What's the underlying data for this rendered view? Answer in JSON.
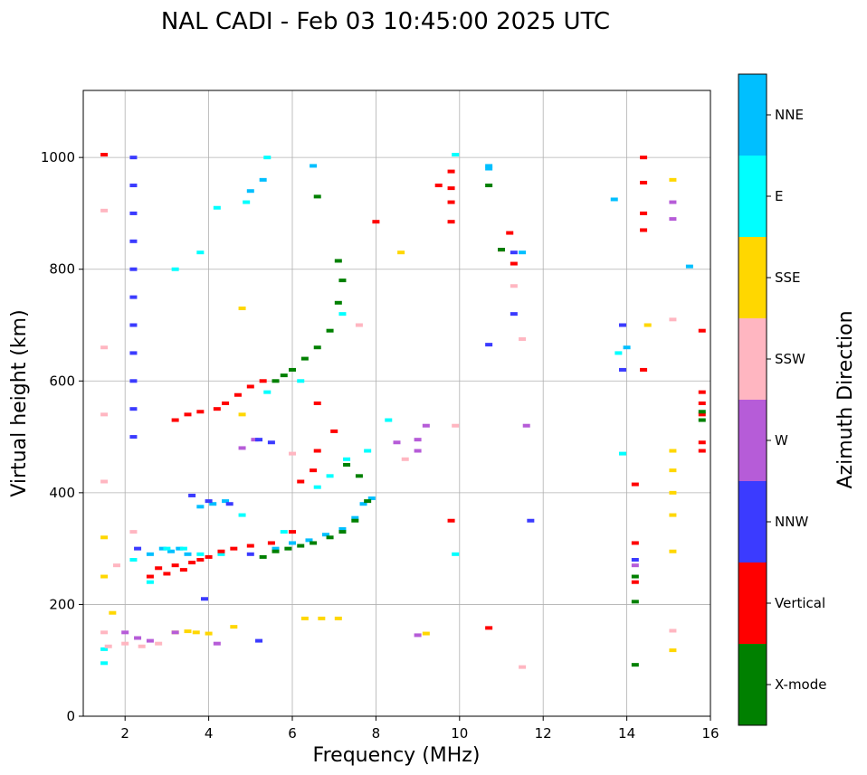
{
  "chart_data": {
    "type": "scatter",
    "title": "NAL CADI - Feb 03 10:45:00 2025 UTC",
    "xlabel": "Frequency (MHz)",
    "ylabel": "Virtual height (km)",
    "xlim": [
      1,
      16
    ],
    "ylim": [
      0,
      1120
    ],
    "xticks": [
      2,
      4,
      6,
      8,
      10,
      12,
      14,
      16
    ],
    "yticks": [
      0,
      200,
      400,
      600,
      800,
      1000
    ],
    "grid": true,
    "colorbar": {
      "label": "Azimuth Direction",
      "categories": [
        {
          "name": "X-mode",
          "color": "#008000"
        },
        {
          "name": "Vertical",
          "color": "#ff0000"
        },
        {
          "name": "NNW",
          "color": "#3b3bff"
        },
        {
          "name": "W",
          "color": "#b65cd8"
        },
        {
          "name": "SSW",
          "color": "#ffb6c1"
        },
        {
          "name": "SSE",
          "color": "#ffd700"
        },
        {
          "name": "E",
          "color": "#00ffff"
        },
        {
          "name": "NNE",
          "color": "#00bfff"
        }
      ]
    },
    "series": [
      {
        "name": "NNE",
        "points": [
          [
            2.6,
            290
          ],
          [
            2.9,
            300
          ],
          [
            3.1,
            295
          ],
          [
            3.3,
            300
          ],
          [
            3.5,
            290
          ],
          [
            3.8,
            375
          ],
          [
            4.1,
            380
          ],
          [
            4.4,
            385
          ],
          [
            5.6,
            300
          ],
          [
            6,
            310
          ],
          [
            6.4,
            315
          ],
          [
            6.8,
            325
          ],
          [
            7.2,
            335
          ],
          [
            7.5,
            355
          ],
          [
            7.7,
            380
          ],
          [
            7.9,
            390
          ],
          [
            5,
            940
          ],
          [
            5.3,
            960
          ],
          [
            6.5,
            985
          ],
          [
            10.7,
            985
          ],
          [
            10.7,
            980
          ],
          [
            11.5,
            830
          ],
          [
            13.7,
            925
          ],
          [
            14,
            660
          ],
          [
            15.5,
            805
          ]
        ]
      },
      {
        "name": "E",
        "points": [
          [
            1.5,
            95
          ],
          [
            1.5,
            120
          ],
          [
            2.2,
            280
          ],
          [
            2.6,
            240
          ],
          [
            3,
            300
          ],
          [
            3.4,
            300
          ],
          [
            3.8,
            290
          ],
          [
            4.3,
            290
          ],
          [
            4.8,
            360
          ],
          [
            5.4,
            580
          ],
          [
            5.8,
            330
          ],
          [
            6.2,
            600
          ],
          [
            6.6,
            410
          ],
          [
            6.9,
            430
          ],
          [
            7.3,
            460
          ],
          [
            7.8,
            475
          ],
          [
            8.3,
            530
          ],
          [
            3.2,
            800
          ],
          [
            3.8,
            830
          ],
          [
            4.2,
            910
          ],
          [
            4.9,
            920
          ],
          [
            5.4,
            1000
          ],
          [
            7.2,
            720
          ],
          [
            9.9,
            1005
          ],
          [
            9.9,
            290
          ],
          [
            13.9,
            470
          ],
          [
            13.8,
            650
          ]
        ]
      },
      {
        "name": "SSE",
        "points": [
          [
            1.5,
            250
          ],
          [
            1.5,
            320
          ],
          [
            1.7,
            185
          ],
          [
            3.2,
            150
          ],
          [
            3.5,
            152
          ],
          [
            3.7,
            150
          ],
          [
            4,
            148
          ],
          [
            4.8,
            540
          ],
          [
            4.8,
            730
          ],
          [
            4.6,
            160
          ],
          [
            6.3,
            175
          ],
          [
            6.7,
            175
          ],
          [
            7.1,
            175
          ],
          [
            8.6,
            830
          ],
          [
            14.5,
            700
          ],
          [
            15.1,
            960
          ],
          [
            15.1,
            475
          ],
          [
            15.1,
            440
          ],
          [
            15.1,
            400
          ],
          [
            15.1,
            360
          ],
          [
            15.1,
            295
          ],
          [
            15.1,
            118
          ],
          [
            9.2,
            148
          ]
        ]
      },
      {
        "name": "SSW",
        "points": [
          [
            1.5,
            905
          ],
          [
            1.5,
            660
          ],
          [
            1.5,
            540
          ],
          [
            1.5,
            420
          ],
          [
            1.5,
            150
          ],
          [
            1.6,
            125
          ],
          [
            2,
            130
          ],
          [
            2.4,
            125
          ],
          [
            2.8,
            130
          ],
          [
            1.8,
            270
          ],
          [
            2.2,
            330
          ],
          [
            7.6,
            700
          ],
          [
            8.7,
            460
          ],
          [
            11.3,
            770
          ],
          [
            11.5,
            675
          ],
          [
            15.1,
            710
          ],
          [
            15.1,
            153
          ],
          [
            11.5,
            88
          ],
          [
            9.9,
            520
          ],
          [
            6,
            470
          ]
        ]
      },
      {
        "name": "W",
        "points": [
          [
            2,
            150
          ],
          [
            2.3,
            140
          ],
          [
            2.6,
            135
          ],
          [
            3.2,
            150
          ],
          [
            4.2,
            130
          ],
          [
            4.8,
            480
          ],
          [
            5.1,
            495
          ],
          [
            8.5,
            490
          ],
          [
            9,
            495
          ],
          [
            9,
            475
          ],
          [
            9,
            145
          ],
          [
            11.6,
            520
          ],
          [
            14.2,
            270
          ],
          [
            15.1,
            920
          ],
          [
            15.1,
            890
          ],
          [
            9.2,
            520
          ]
        ]
      },
      {
        "name": "NNW",
        "points": [
          [
            2.2,
            1000
          ],
          [
            2.2,
            950
          ],
          [
            2.2,
            900
          ],
          [
            2.2,
            850
          ],
          [
            2.2,
            800
          ],
          [
            2.2,
            750
          ],
          [
            2.2,
            700
          ],
          [
            2.2,
            650
          ],
          [
            2.2,
            600
          ],
          [
            2.2,
            550
          ],
          [
            2.2,
            500
          ],
          [
            2.3,
            300
          ],
          [
            3.6,
            395
          ],
          [
            4,
            385
          ],
          [
            4.5,
            380
          ],
          [
            5,
            290
          ],
          [
            5.2,
            495
          ],
          [
            5.5,
            490
          ],
          [
            3.9,
            210
          ],
          [
            5.2,
            135
          ],
          [
            10.7,
            665
          ],
          [
            11.3,
            720
          ],
          [
            11.3,
            830
          ],
          [
            11.7,
            350
          ],
          [
            13.9,
            700
          ],
          [
            13.9,
            620
          ],
          [
            14.2,
            280
          ]
        ]
      },
      {
        "name": "Vertical",
        "points": [
          [
            1.5,
            1005
          ],
          [
            2.6,
            250
          ],
          [
            2.8,
            265
          ],
          [
            3,
            255
          ],
          [
            3.2,
            270
          ],
          [
            3.4,
            262
          ],
          [
            3.6,
            275
          ],
          [
            3.8,
            280
          ],
          [
            4,
            285
          ],
          [
            4.3,
            295
          ],
          [
            4.6,
            300
          ],
          [
            5,
            305
          ],
          [
            5.5,
            310
          ],
          [
            6,
            330
          ],
          [
            4.2,
            550
          ],
          [
            4.4,
            560
          ],
          [
            4.7,
            575
          ],
          [
            5,
            590
          ],
          [
            5.3,
            600
          ],
          [
            3.2,
            530
          ],
          [
            3.5,
            540
          ],
          [
            3.8,
            545
          ],
          [
            6.6,
            560
          ],
          [
            6.6,
            475
          ],
          [
            7,
            510
          ],
          [
            6.2,
            420
          ],
          [
            6.5,
            440
          ],
          [
            8,
            885
          ],
          [
            9.5,
            950
          ],
          [
            9.8,
            975
          ],
          [
            9.8,
            945
          ],
          [
            9.8,
            920
          ],
          [
            9.8,
            885
          ],
          [
            11,
            835
          ],
          [
            11.2,
            865
          ],
          [
            11.3,
            810
          ],
          [
            14.4,
            1000
          ],
          [
            14.4,
            955
          ],
          [
            14.4,
            900
          ],
          [
            14.4,
            870
          ],
          [
            14.4,
            620
          ],
          [
            14.2,
            415
          ],
          [
            14.2,
            310
          ],
          [
            14.2,
            240
          ],
          [
            15.8,
            690
          ],
          [
            15.8,
            580
          ],
          [
            15.8,
            560
          ],
          [
            15.8,
            540
          ],
          [
            15.8,
            490
          ],
          [
            15.8,
            475
          ],
          [
            10.7,
            158
          ],
          [
            9.8,
            350
          ]
        ]
      },
      {
        "name": "X-mode",
        "points": [
          [
            5.3,
            285
          ],
          [
            5.6,
            295
          ],
          [
            5.9,
            300
          ],
          [
            6.2,
            305
          ],
          [
            6.5,
            310
          ],
          [
            6.9,
            320
          ],
          [
            7.2,
            330
          ],
          [
            7.5,
            350
          ],
          [
            7.8,
            385
          ],
          [
            6,
            620
          ],
          [
            6.3,
            640
          ],
          [
            6.6,
            660
          ],
          [
            6.9,
            690
          ],
          [
            7.1,
            740
          ],
          [
            7.2,
            780
          ],
          [
            7.1,
            815
          ],
          [
            5.6,
            600
          ],
          [
            5.8,
            610
          ],
          [
            6.6,
            930
          ],
          [
            15.8,
            530
          ],
          [
            15.8,
            545
          ],
          [
            14.2,
            250
          ],
          [
            14.2,
            205
          ],
          [
            14.2,
            92
          ],
          [
            10.7,
            950
          ],
          [
            11,
            835
          ],
          [
            7.3,
            450
          ],
          [
            7.6,
            430
          ]
        ]
      }
    ]
  }
}
